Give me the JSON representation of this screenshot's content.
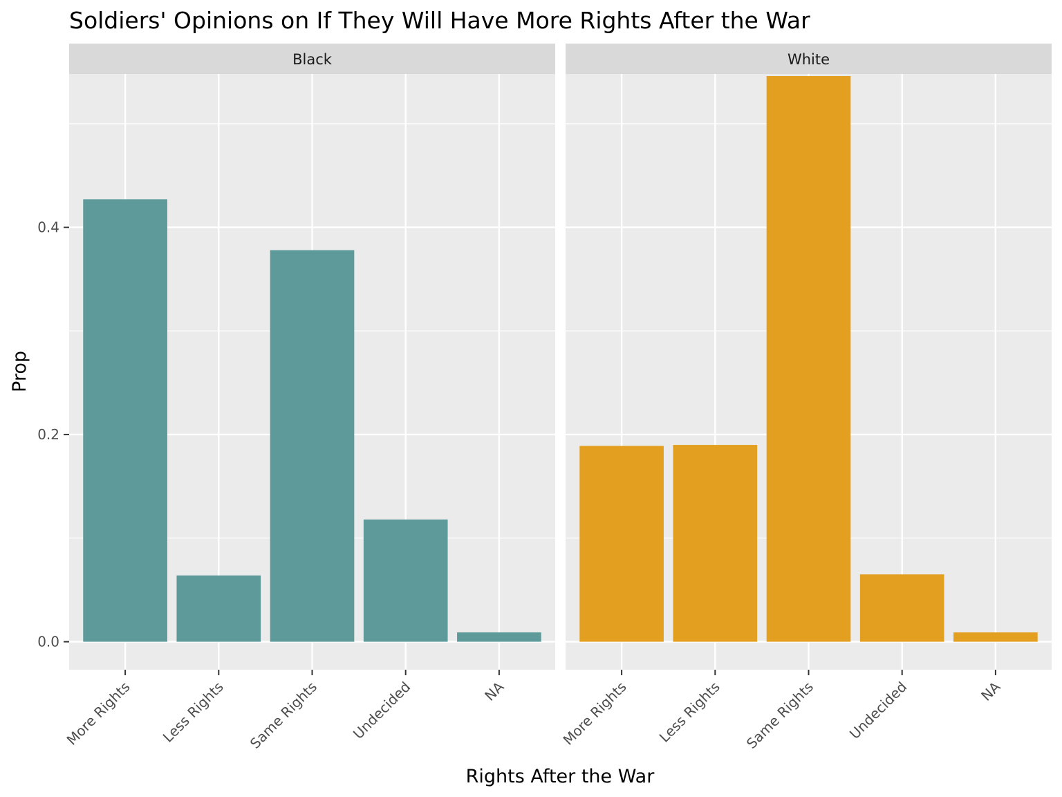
{
  "chart_data": {
    "type": "bar",
    "title": "Soldiers' Opinions on If They Will Have More Rights After the War",
    "xlabel": "Rights After the War",
    "ylabel": "Prop",
    "categories": [
      "More Rights",
      "Less Rights",
      "Same Rights",
      "Undecided",
      "NA"
    ],
    "ylim": [
      -0.027,
      0.548
    ],
    "y_ticks": [
      0.0,
      0.2,
      0.4
    ],
    "y_tick_labels": [
      "0.0",
      "0.2",
      "0.4"
    ],
    "grid": true,
    "legend": "none",
    "panels": [
      {
        "strip_label": "Black",
        "color": "#5F9A9A",
        "values": [
          0.427,
          0.064,
          0.378,
          0.118,
          0.009
        ]
      },
      {
        "strip_label": "White",
        "color": "#E3A020",
        "values": [
          0.189,
          0.19,
          0.546,
          0.065,
          0.009
        ]
      }
    ]
  }
}
